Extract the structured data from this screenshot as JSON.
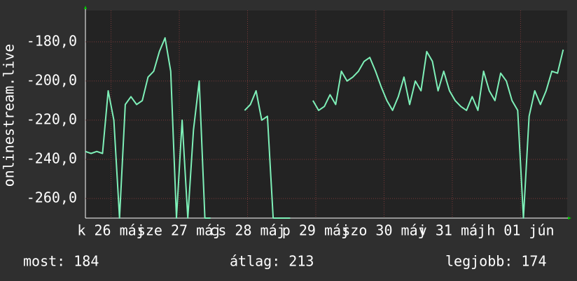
{
  "chart_data": {
    "type": "line",
    "ylabel": "onlinestream.live",
    "x": [
      0,
      2,
      4,
      6,
      8,
      10,
      12,
      14,
      16,
      18,
      20,
      22,
      24,
      26,
      28,
      30,
      32,
      34,
      36,
      38,
      40,
      42,
      44,
      46,
      48,
      50,
      52,
      54,
      56,
      58,
      60,
      62,
      64,
      66,
      68,
      70,
      72,
      74,
      76,
      78,
      80,
      82,
      84,
      86,
      88,
      90,
      92,
      94,
      96,
      98,
      100,
      102,
      104,
      106,
      108,
      110,
      112,
      114,
      116,
      118,
      120,
      122,
      124,
      126,
      128,
      130,
      132,
      134,
      136,
      138,
      140,
      142,
      144,
      146,
      148,
      150,
      152,
      154,
      156,
      158,
      160,
      162,
      164,
      166,
      168
    ],
    "values": [
      -236,
      -237,
      -236,
      -237,
      -205,
      -220,
      -270,
      -212,
      -208,
      -212,
      -210,
      -198,
      -195,
      -185,
      -178,
      -195,
      -270,
      -220,
      -270,
      -225,
      -200,
      -270,
      -270,
      null,
      null,
      null,
      null,
      null,
      -215,
      -212,
      -205,
      -220,
      -218,
      -270,
      -270,
      -270,
      -270,
      null,
      null,
      null,
      -210,
      -215,
      -213,
      -207,
      -212,
      -195,
      -200,
      -198,
      -195,
      -190,
      -188,
      -195,
      -203,
      -210,
      -215,
      -208,
      -198,
      -212,
      -200,
      -205,
      -185,
      -190,
      -205,
      -195,
      -205,
      -210,
      -213,
      -215,
      -208,
      -215,
      -195,
      -205,
      -210,
      -196,
      -200,
      -210,
      -215,
      -270,
      -218,
      -205,
      -212,
      -205,
      -195,
      -196,
      -184
    ],
    "color": "#7ef0b8",
    "xlim": [
      0,
      169.4
    ],
    "xticks": [
      {
        "value": 9,
        "label": "k 26 máj"
      },
      {
        "value": 33,
        "label": "sze 27 máj"
      },
      {
        "value": 57,
        "label": "cs 28 máj"
      },
      {
        "value": 81,
        "label": "p 29 máj"
      },
      {
        "value": 105,
        "label": "szo 30 máj"
      },
      {
        "value": 129,
        "label": "v 31 máj"
      },
      {
        "value": 153,
        "label": "h 01 jún"
      }
    ],
    "ylim": [
      -270,
      -164
    ],
    "yticks": [
      {
        "value": -260,
        "label": "-260,0"
      },
      {
        "value": -240,
        "label": "-240,0"
      },
      {
        "value": -220,
        "label": "-220,0"
      },
      {
        "value": -200,
        "label": "-200,0"
      },
      {
        "value": -180,
        "label": "-180,0"
      }
    ],
    "grid": true,
    "annotations": [
      "most: 184",
      "átlag: 213",
      "legjobb: 174"
    ]
  }
}
